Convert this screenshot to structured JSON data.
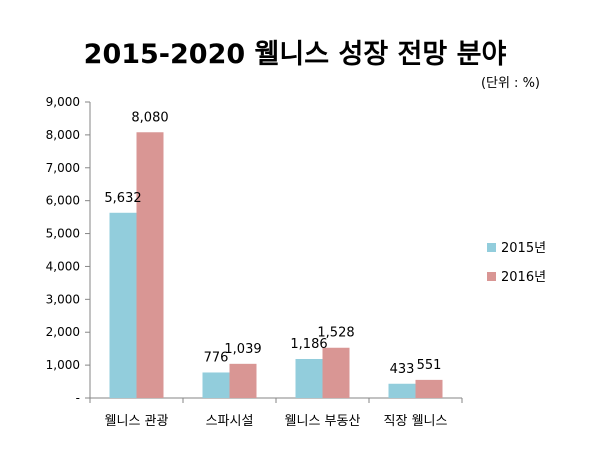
{
  "chart_data": {
    "type": "bar",
    "title": "2015-2020 웰니스 성장 전망 분야",
    "unit_note": "(단위 : %)",
    "categories": [
      "웰니스 관광",
      "스파시설",
      "웰니스 부동산",
      "직장 웰니스"
    ],
    "series": [
      {
        "name": "2015년",
        "values": [
          5632,
          776,
          1186,
          433
        ],
        "labels": [
          "5,632",
          "776",
          "1,186",
          "433"
        ],
        "color": "#92CDDC"
      },
      {
        "name": "2016년",
        "values": [
          8080,
          1039,
          1528,
          551
        ],
        "labels": [
          "8,080",
          "1,039",
          "1,528",
          "551"
        ],
        "color": "#D99694"
      }
    ],
    "ylim": [
      0,
      9000
    ],
    "yticks": [
      0,
      1000,
      2000,
      3000,
      4000,
      5000,
      6000,
      7000,
      8000,
      9000
    ],
    "ytick_labels": [
      "-",
      "1,000",
      "2,000",
      "3,000",
      "4,000",
      "5,000",
      "6,000",
      "7,000",
      "8,000",
      "9,000"
    ],
    "grid": false,
    "legend_position": "right"
  }
}
